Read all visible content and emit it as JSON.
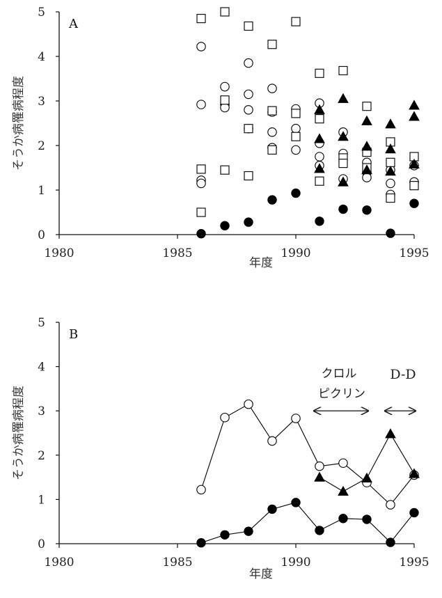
{
  "chart_data": [
    {
      "type": "scatter",
      "panel_label": "A",
      "xlabel": "年度",
      "ylabel": "そうか病罹病程度",
      "xlim": [
        1980,
        1995
      ],
      "ylim": [
        0,
        5
      ],
      "xticks": [
        1980,
        1985,
        1990,
        1995
      ],
      "yticks": [
        0,
        1,
        2,
        3,
        4,
        5
      ],
      "series": [
        {
          "marker": "open-circle",
          "points": [
            [
              1986,
              4.22
            ],
            [
              1986,
              2.92
            ],
            [
              1986,
              1.22
            ],
            [
              1986,
              1.15
            ],
            [
              1987,
              3.32
            ],
            [
              1987,
              2.92
            ],
            [
              1987,
              2.85
            ],
            [
              1988,
              3.85
            ],
            [
              1988,
              3.15
            ],
            [
              1988,
              2.8
            ],
            [
              1988,
              2.38
            ],
            [
              1989,
              3.28
            ],
            [
              1989,
              2.75
            ],
            [
              1989,
              2.3
            ],
            [
              1989,
              1.95
            ],
            [
              1990,
              2.82
            ],
            [
              1990,
              2.38
            ],
            [
              1990,
              1.9
            ],
            [
              1991,
              2.95
            ],
            [
              1991,
              2.05
            ],
            [
              1991,
              1.75
            ],
            [
              1991,
              1.55
            ],
            [
              1992,
              2.3
            ],
            [
              1992,
              1.82
            ],
            [
              1992,
              1.25
            ],
            [
              1993,
              1.62
            ],
            [
              1993,
              1.4
            ],
            [
              1993,
              1.28
            ],
            [
              1994,
              1.45
            ],
            [
              1994,
              1.15
            ],
            [
              1994,
              0.9
            ],
            [
              1995,
              1.55
            ],
            [
              1995,
              1.18
            ]
          ]
        },
        {
          "marker": "open-square",
          "points": [
            [
              1986,
              4.85
            ],
            [
              1986,
              1.47
            ],
            [
              1986,
              0.5
            ],
            [
              1987,
              5.0
            ],
            [
              1987,
              3.02
            ],
            [
              1987,
              1.45
            ],
            [
              1988,
              4.68
            ],
            [
              1988,
              2.38
            ],
            [
              1988,
              1.32
            ],
            [
              1989,
              4.27
            ],
            [
              1989,
              2.78
            ],
            [
              1989,
              1.9
            ],
            [
              1990,
              4.78
            ],
            [
              1990,
              2.72
            ],
            [
              1990,
              2.2
            ],
            [
              1991,
              3.62
            ],
            [
              1991,
              2.6
            ],
            [
              1991,
              1.2
            ],
            [
              1992,
              3.68
            ],
            [
              1992,
              1.72
            ],
            [
              1992,
              1.6
            ],
            [
              1993,
              2.88
            ],
            [
              1993,
              1.85
            ],
            [
              1993,
              1.5
            ],
            [
              1994,
              2.08
            ],
            [
              1994,
              1.62
            ],
            [
              1994,
              0.82
            ],
            [
              1995,
              1.75
            ],
            [
              1995,
              1.1
            ]
          ]
        },
        {
          "marker": "filled-triangle",
          "points": [
            [
              1991,
              2.8
            ],
            [
              1991,
              2.15
            ],
            [
              1991,
              1.48
            ],
            [
              1992,
              3.05
            ],
            [
              1992,
              2.2
            ],
            [
              1992,
              1.18
            ],
            [
              1993,
              2.55
            ],
            [
              1993,
              1.98
            ],
            [
              1993,
              1.45
            ],
            [
              1994,
              2.48
            ],
            [
              1994,
              1.92
            ],
            [
              1994,
              1.42
            ],
            [
              1995,
              2.9
            ],
            [
              1995,
              2.65
            ],
            [
              1995,
              1.58
            ]
          ]
        },
        {
          "marker": "filled-circle",
          "points": [
            [
              1986,
              0.02
            ],
            [
              1987,
              0.2
            ],
            [
              1988,
              0.28
            ],
            [
              1989,
              0.78
            ],
            [
              1990,
              0.93
            ],
            [
              1991,
              0.3
            ],
            [
              1992,
              0.57
            ],
            [
              1993,
              0.55
            ],
            [
              1994,
              0.03
            ],
            [
              1995,
              0.7
            ]
          ]
        }
      ]
    },
    {
      "type": "line",
      "panel_label": "B",
      "xlabel": "年度",
      "ylabel": "そうか病罹病程度",
      "xlim": [
        1980,
        1995
      ],
      "ylim": [
        0,
        5
      ],
      "xticks": [
        1980,
        1985,
        1990,
        1995
      ],
      "yticks": [
        0,
        1,
        2,
        3,
        4,
        5
      ],
      "series": [
        {
          "marker": "open-circle",
          "points": [
            [
              1986,
              1.22
            ],
            [
              1987,
              2.85
            ],
            [
              1988,
              3.15
            ],
            [
              1989,
              2.32
            ],
            [
              1990,
              2.83
            ],
            [
              1991,
              1.75
            ],
            [
              1992,
              1.82
            ],
            [
              1993,
              1.38
            ],
            [
              1994,
              0.88
            ],
            [
              1995,
              1.55
            ]
          ]
        },
        {
          "marker": "filled-triangle",
          "points": [
            [
              1991,
              1.5
            ],
            [
              1992,
              1.18
            ],
            [
              1993,
              1.48
            ],
            [
              1994,
              2.48
            ],
            [
              1995,
              1.58
            ]
          ]
        },
        {
          "marker": "filled-circle",
          "points": [
            [
              1986,
              0.02
            ],
            [
              1987,
              0.2
            ],
            [
              1988,
              0.28
            ],
            [
              1989,
              0.78
            ],
            [
              1990,
              0.93
            ],
            [
              1991,
              0.3
            ],
            [
              1992,
              0.57
            ],
            [
              1993,
              0.55
            ],
            [
              1994,
              0.03
            ],
            [
              1995,
              0.7
            ]
          ]
        }
      ],
      "annotations": [
        {
          "lines": [
            "クロル",
            "ピクリン"
          ],
          "span": [
            1991,
            1993
          ],
          "y": 3.0
        },
        {
          "lines": [
            "D-D"
          ],
          "span": [
            1994,
            1995
          ],
          "y": 3.0
        }
      ]
    }
  ]
}
